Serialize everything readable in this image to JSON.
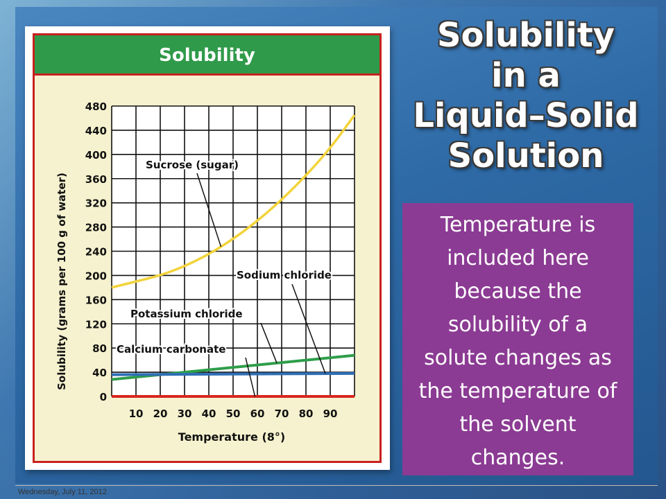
{
  "slide": {
    "title": "Solubility\nin a\nLiquid–Solid\nSolution",
    "body_text": "Temperature is\nincluded here\nbecause the\nsolubility of a\nsolute changes as\nthe temperature of\nthe solvent\nchanges.",
    "footer_date": "Wednesday, July 11, 2012",
    "colors": {
      "purple_box": "#8b3b93",
      "header_green": "#2f9a4a",
      "border_red": "#c8201e",
      "plot_bg": "#f6f2cf"
    }
  },
  "chart_data": {
    "type": "line",
    "title": "Solubility",
    "xlabel": "Temperature (8°)",
    "ylabel": "Solubility (grams per 100 g of water)",
    "x_ticks": [
      10,
      20,
      30,
      40,
      50,
      60,
      70,
      80,
      90
    ],
    "y_ticks": [
      0,
      40,
      80,
      120,
      160,
      200,
      240,
      280,
      320,
      360,
      400,
      440,
      480
    ],
    "xlim": [
      0,
      100
    ],
    "ylim": [
      0,
      480
    ],
    "grid": true,
    "series": [
      {
        "name": "Sucrose (sugar)",
        "color": "#f2d33a",
        "x": [
          0,
          10,
          20,
          30,
          40,
          50,
          60,
          70,
          80,
          90,
          100
        ],
        "y": [
          180,
          190,
          200,
          215,
          235,
          260,
          290,
          325,
          365,
          410,
          465
        ]
      },
      {
        "name": "Potassium chloride",
        "color": "#2e9e4a",
        "x": [
          0,
          100
        ],
        "y": [
          28,
          68
        ]
      },
      {
        "name": "Sodium chloride",
        "color": "#2f6fb5",
        "x": [
          0,
          100
        ],
        "y": [
          36,
          38
        ]
      },
      {
        "name": "Calcium carbonate",
        "color": "#d8261f",
        "x": [
          0,
          100
        ],
        "y": [
          0,
          0
        ]
      }
    ],
    "annotations": [
      {
        "text": "Sucrose (sugar)",
        "series": 0,
        "at_x": 45
      },
      {
        "text": "Sodium chloride",
        "series": 2,
        "at_x": 88
      },
      {
        "text": "Potassium chloride",
        "series": 1,
        "at_x": 68
      },
      {
        "text": "Calcium carbonate",
        "series": 3,
        "at_x": 59
      }
    ]
  }
}
